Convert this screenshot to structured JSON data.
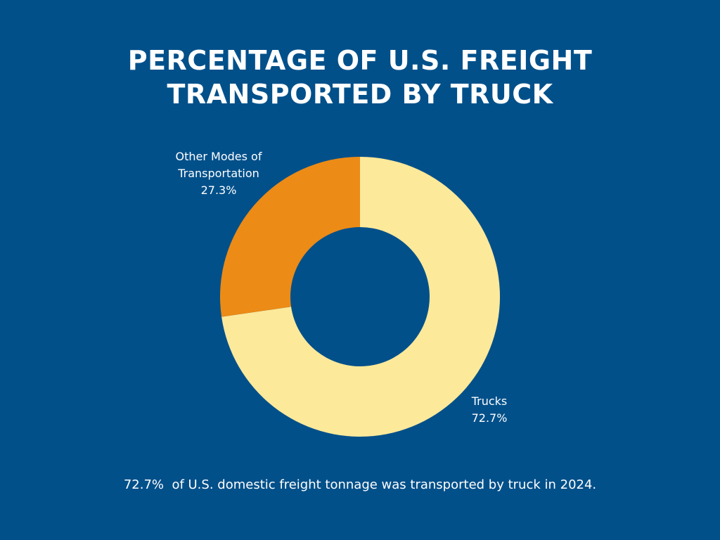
{
  "background": "#02508a",
  "title_lines": [
    "PERCENTAGE OF U.S. FREIGHT",
    "TRANSPORTED BY TRUCK"
  ],
  "caption": "72.7%  of U.S. domestic freight tonnage was transported by truck in 2024.",
  "chart_data": {
    "type": "pie",
    "variant": "donut",
    "title": "PERCENTAGE OF U.S. FREIGHT TRANSPORTED BY TRUCK",
    "categories": [
      "Trucks",
      "Other Modes of Transportation"
    ],
    "values": [
      72.7,
      27.3
    ],
    "unit": "%",
    "colors": [
      "#fde99a",
      "#ec8b16"
    ],
    "slice_labels": [
      {
        "lines": [
          "Trucks",
          "72.7%"
        ]
      },
      {
        "lines": [
          "Other Modes of",
          "Transportation",
          "27.3%"
        ]
      }
    ],
    "legend": "none",
    "start_angle": "12 o'clock",
    "direction": "clockwise"
  }
}
